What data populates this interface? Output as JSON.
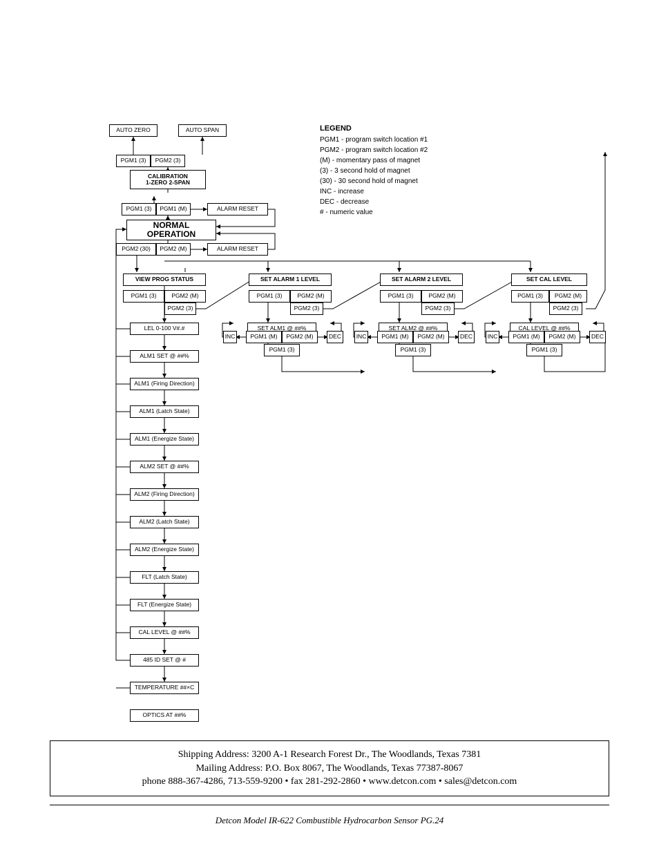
{
  "colors": {
    "bg": "#ffffff",
    "line": "#000000",
    "text": "#000000"
  },
  "top": {
    "auto_zero": "AUTO ZERO",
    "auto_span": "AUTO SPAN",
    "pgm1_3_a": "PGM1 (3)",
    "pgm2_3_a": "PGM2 (3)",
    "calibration_l1": "CALIBRATION",
    "calibration_l2": "1-ZERO  2-SPAN",
    "pgm1_3_b": "PGM1 (3)",
    "pgm1_m_b": "PGM1 (M)",
    "alarm_reset_1": "ALARM RESET",
    "normal_l1": "NORMAL",
    "normal_l2": "OPERATION",
    "pgm2_30": "PGM2 (30)",
    "pgm2_m": "PGM2 (M)",
    "alarm_reset_2": "ALARM RESET"
  },
  "legend": {
    "title": "LEGEND",
    "lines": [
      "PGM1 - program switch location #1",
      "PGM2 - program switch location #2",
      "(M) - momentary pass of magnet",
      "(3) - 3 second hold of magnet",
      "(30) - 30 second hold of magnet",
      "INC - increase",
      "DEC - decrease",
      "# - numeric value"
    ]
  },
  "cols": {
    "c1": {
      "header": "VIEW PROG STATUS",
      "pgm1": "PGM1 (3)",
      "pgm2m": "PGM2 (M)",
      "pgm2_3": "PGM2 (3)",
      "items": [
        "LEL  0-100  V#.#",
        "ALM1 SET @ ##%",
        "ALM1 (Firing Direction)",
        "ALM1 (Latch State)",
        "ALM1 (Energize State)",
        "ALM2 SET @ ##%",
        "ALM2 (Firing Direction)",
        "ALM2 (Latch State)",
        "ALM2 (Energize State)",
        "FLT (Latch State)",
        "FLT (Energize State)",
        "CAL  LEVEL @ ##%",
        "485 ID SET @ #",
        "TEMPERATURE ##×C",
        "OPTICS AT ##%"
      ]
    },
    "c2": {
      "header": "SET ALARM 1 LEVEL",
      "pgm1": "PGM1 (3)",
      "pgm2m": "PGM2 (M)",
      "pgm2_3": "PGM2 (3)",
      "set": "SET ALM1 @ ##%",
      "inc": "INC",
      "dec": "DEC",
      "pgm1m_l": "PGM1 (M)",
      "pgm2m_r": "PGM2 (M)",
      "pgm1_3_btm": "PGM1 (3)"
    },
    "c3": {
      "header": "SET ALARM 2 LEVEL",
      "pgm1": "PGM1 (3)",
      "pgm2m": "PGM2 (M)",
      "pgm2_3": "PGM2 (3)",
      "set": "SET ALM2 @ ##%",
      "inc": "INC",
      "dec": "DEC",
      "pgm1m_l": "PGM1 (M)",
      "pgm2m_r": "PGM2 (M)",
      "pgm1_3_btm": "PGM1 (3)"
    },
    "c4": {
      "header": "SET CAL LEVEL",
      "pgm1": "PGM1 (3)",
      "pgm2m": "PGM2 (M)",
      "pgm2_3": "PGM2 (3)",
      "set": "CAL LEVEL @ ##%",
      "inc": "INC",
      "dec": "DEC",
      "pgm1m_l": "PGM1 (M)",
      "pgm2m_r": "PGM2 (M)",
      "pgm1_3_btm": "PGM1 (3)"
    }
  },
  "footer": {
    "l1": "Shipping Address: 3200 A-1 Research Forest Dr., The Woodlands, Texas 7381",
    "l2": "Mailing Address: P.O. Box 8067, The Woodlands, Texas 77387-8067",
    "l3": "phone 888-367-4286, 713-559-9200  •  fax 281-292-2860  •  www.detcon.com  •  sales@detcon.com",
    "pg": "Detcon Model IR-622 Combustible Hydrocarbon Sensor   PG.24"
  },
  "layout": {
    "font_small": 8.5,
    "font_legend": 10,
    "font_footer": 14,
    "box_border": "#000000",
    "arrow_color": "#000000"
  }
}
